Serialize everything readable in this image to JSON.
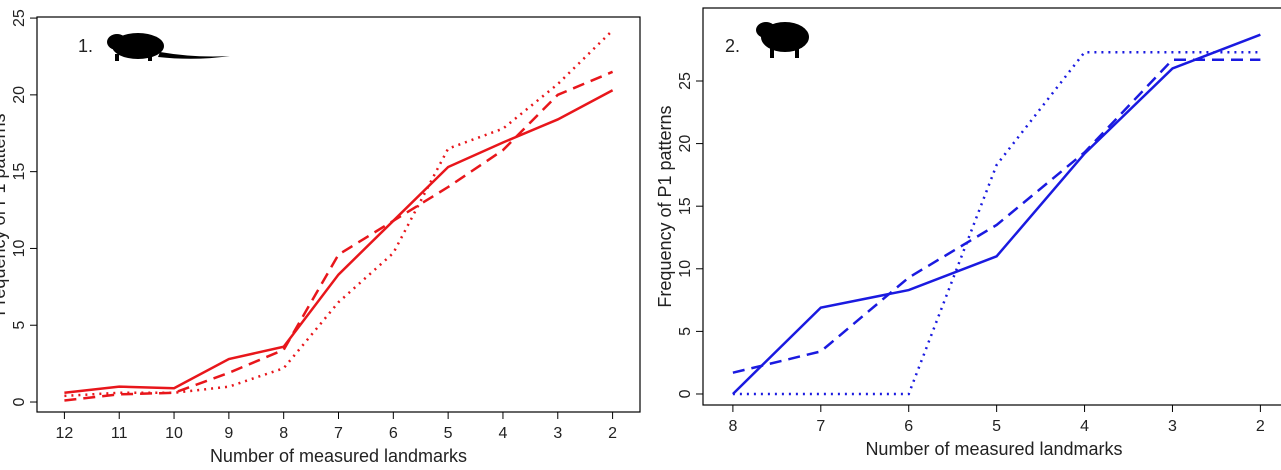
{
  "chart_data": [
    {
      "type": "line",
      "annotation": "1.",
      "xlabel": "Number of measured landmarks",
      "ylabel": "Frequency of P1 patterns",
      "x": [
        12,
        11,
        10,
        9,
        8,
        7,
        6,
        5,
        4,
        3,
        2
      ],
      "xlim": [
        12.5,
        1.5
      ],
      "xticks": [
        12,
        11,
        10,
        9,
        8,
        7,
        6,
        5,
        4,
        3,
        2
      ],
      "ylim": [
        -0.65,
        25.07
      ],
      "yticks": [
        0,
        5,
        10,
        15,
        20,
        25
      ],
      "series": [
        {
          "color": "#e8161b",
          "dash": "solid",
          "values": [
            0.6,
            1.0,
            0.9,
            2.8,
            3.6,
            8.3,
            11.8,
            15.3,
            16.9,
            18.4,
            20.3
          ]
        },
        {
          "color": "#e8161b",
          "dash": "dashed",
          "values": [
            0.1,
            0.5,
            0.6,
            1.9,
            3.4,
            9.6,
            11.8,
            14.0,
            16.4,
            20.0,
            21.5
          ]
        },
        {
          "color": "#e8161b",
          "dash": "dotted",
          "values": [
            0.4,
            0.6,
            0.6,
            1.0,
            2.2,
            6.5,
            9.7,
            16.5,
            17.8,
            20.7,
            24.2
          ]
        }
      ]
    },
    {
      "type": "line",
      "annotation": "2.",
      "xlabel": "Number of measured landmarks",
      "ylabel": "Frequency of P1 patterns",
      "x": [
        8,
        7,
        6,
        5,
        4,
        3,
        2
      ],
      "xlim": [
        8.34,
        1.72
      ],
      "xticks": [
        8,
        7,
        6,
        5,
        4,
        3,
        2
      ],
      "ylim": [
        -0.88,
        30.83
      ],
      "yticks": [
        0,
        5,
        10,
        15,
        20,
        25
      ],
      "series": [
        {
          "color": "#1a1ae0",
          "dash": "solid",
          "values": [
            0,
            6.9,
            8.3,
            11.0,
            19.2,
            26.0,
            28.7
          ]
        },
        {
          "color": "#1a1ae0",
          "dash": "dashed",
          "values": [
            1.7,
            3.4,
            9.3,
            13.5,
            19.3,
            26.7,
            26.7
          ]
        },
        {
          "color": "#1a1ae0",
          "dash": "dotted",
          "values": [
            0,
            0,
            0,
            18.3,
            27.3,
            27.3,
            27.3
          ]
        }
      ]
    }
  ]
}
